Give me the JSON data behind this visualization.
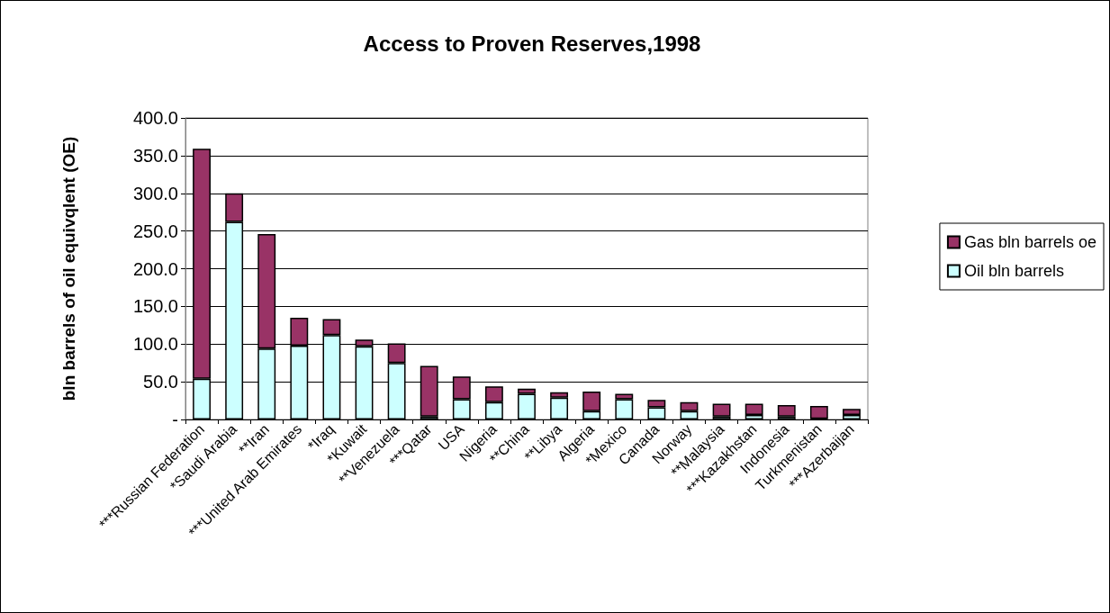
{
  "chart_data": {
    "type": "bar",
    "title": "Access to Proven Reserves,1998",
    "ylabel": "bln barrels of oil equivqlent (OE)",
    "categories": [
      "***Russian Federation",
      "*Saudi Arabia",
      "**Iran",
      "***United Arab Emirates",
      "*Iraq",
      "*Kuwait",
      "**Venezuela",
      "***Qatar",
      "USA",
      "Nigeria",
      "**China",
      "**Libya",
      "Algeria",
      "*Mexico",
      "Canada",
      "Norway",
      "**Malaysia",
      "***Kazakhstan",
      "Indonesia",
      "Turkmenistan",
      "***Azerbaijan"
    ],
    "stacked": true,
    "series": [
      {
        "name": "Oil bln barrels",
        "color": "#ccffff",
        "values": [
          54,
          262,
          94,
          98,
          112,
          97,
          75,
          4,
          27,
          23,
          34,
          29,
          11,
          27,
          16,
          11,
          4,
          6,
          4,
          1,
          6
        ]
      },
      {
        "name": "Gas bln barrels oe",
        "color": "#993366",
        "values": [
          305,
          38,
          152,
          37,
          21,
          9,
          26,
          67,
          30,
          21,
          7,
          7,
          26,
          7,
          10,
          12,
          17,
          15,
          15,
          17,
          8
        ]
      }
    ],
    "ylim": [
      0,
      400
    ],
    "yticks": [
      {
        "value": 0,
        "label": "-"
      },
      {
        "value": 50,
        "label": "50.0"
      },
      {
        "value": 100,
        "label": "100.0"
      },
      {
        "value": 150,
        "label": "150.0"
      },
      {
        "value": 200,
        "label": "200.0"
      },
      {
        "value": 250,
        "label": "250.0"
      },
      {
        "value": 300,
        "label": "300.0"
      },
      {
        "value": 350,
        "label": "350.0"
      },
      {
        "value": 400,
        "label": "400.0"
      }
    ],
    "grid": "y",
    "legend": "right"
  }
}
